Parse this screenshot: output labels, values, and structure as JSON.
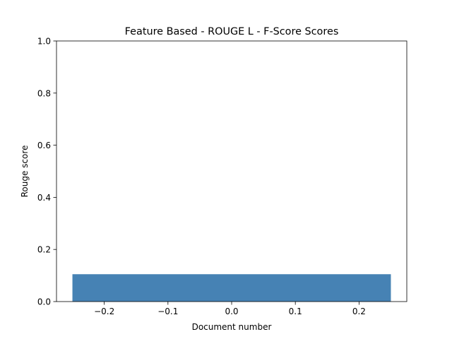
{
  "chart_data": {
    "type": "bar",
    "title": "Feature Based - ROUGE L - F-Score Scores",
    "xlabel": "Document number",
    "ylabel": "Rouge score",
    "x": [
      0
    ],
    "values": [
      0.105
    ],
    "bar_width": 0.5,
    "xlim": [
      -0.275,
      0.275
    ],
    "ylim": [
      0,
      1
    ],
    "xticks": [
      -0.2,
      -0.1,
      0.0,
      0.1,
      0.2
    ],
    "xtick_labels": [
      "−0.2",
      "−0.1",
      "0.0",
      "0.1",
      "0.2"
    ],
    "yticks": [
      0.0,
      0.2,
      0.4,
      0.6,
      0.8,
      1.0
    ],
    "ytick_labels": [
      "0.0",
      "0.2",
      "0.4",
      "0.6",
      "0.8",
      "1.0"
    ],
    "bar_color": "#4682b4",
    "grid": false,
    "legend": "none"
  }
}
